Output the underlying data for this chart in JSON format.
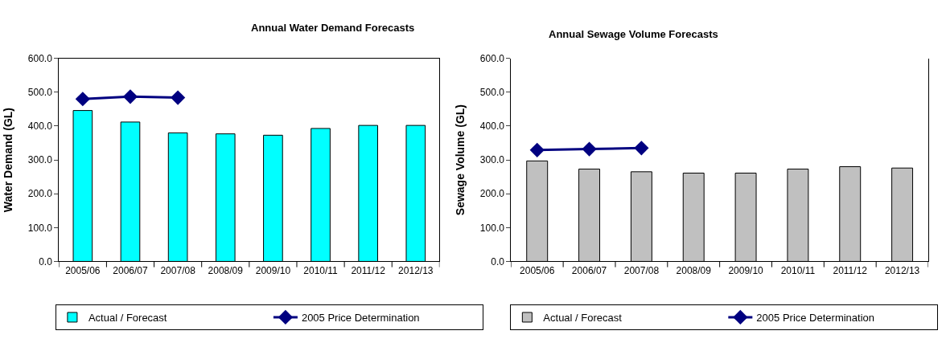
{
  "chart_data": [
    {
      "type": "bar",
      "title": "Annual Water Demand Forecasts",
      "ylabel": "Water Demand (GL)",
      "categories": [
        "2005/06",
        "2006/07",
        "2007/08",
        "2008/09",
        "2009/10",
        "2010/11",
        "2011/12",
        "2012/13"
      ],
      "series": [
        {
          "name": "Actual / Forecast",
          "color": "#00ffff",
          "values": [
            446,
            412,
            380,
            377,
            373,
            393,
            402,
            402
          ]
        },
        {
          "name": "2005 Price Determination",
          "type": "line",
          "color": "#000080",
          "marker": "diamond",
          "values": [
            480,
            487,
            484,
            null,
            null,
            null,
            null,
            null
          ]
        }
      ],
      "ylim": [
        0,
        600
      ],
      "yticks": [
        {
          "value": 0,
          "label": "0.0"
        },
        {
          "value": 100,
          "label": "100.0"
        },
        {
          "value": 200,
          "label": "200.0"
        },
        {
          "value": 300,
          "label": "300.0"
        },
        {
          "value": 400,
          "label": "400.0"
        },
        {
          "value": 500,
          "label": "500.0"
        },
        {
          "value": 600,
          "label": "600.0"
        }
      ],
      "legend": "bottom"
    },
    {
      "type": "bar",
      "title": "Annual Sewage Volume Forecasts",
      "ylabel": "Sewage Volume (GL)",
      "categories": [
        "2005/06",
        "2006/07",
        "2007/08",
        "2008/09",
        "2009/10",
        "2010/11",
        "2011/12",
        "2012/13"
      ],
      "series": [
        {
          "name": "Actual / Forecast",
          "color": "#c0c0c0",
          "values": [
            297,
            273,
            265,
            261,
            261,
            273,
            280,
            276
          ]
        },
        {
          "name": "2005 Price Determination",
          "type": "line",
          "color": "#000080",
          "marker": "diamond",
          "values": [
            329,
            332,
            335,
            null,
            null,
            null,
            null,
            null
          ]
        }
      ],
      "ylim": [
        0,
        600
      ],
      "yticks": [
        {
          "value": 0,
          "label": "0.0"
        },
        {
          "value": 100,
          "label": "100.0"
        },
        {
          "value": 200,
          "label": "200.0"
        },
        {
          "value": 300,
          "label": "300.0"
        },
        {
          "value": 400,
          "label": "400.0"
        },
        {
          "value": 500,
          "label": "500.0"
        },
        {
          "value": 600,
          "label": "600.0"
        }
      ],
      "legend": "bottom"
    }
  ]
}
